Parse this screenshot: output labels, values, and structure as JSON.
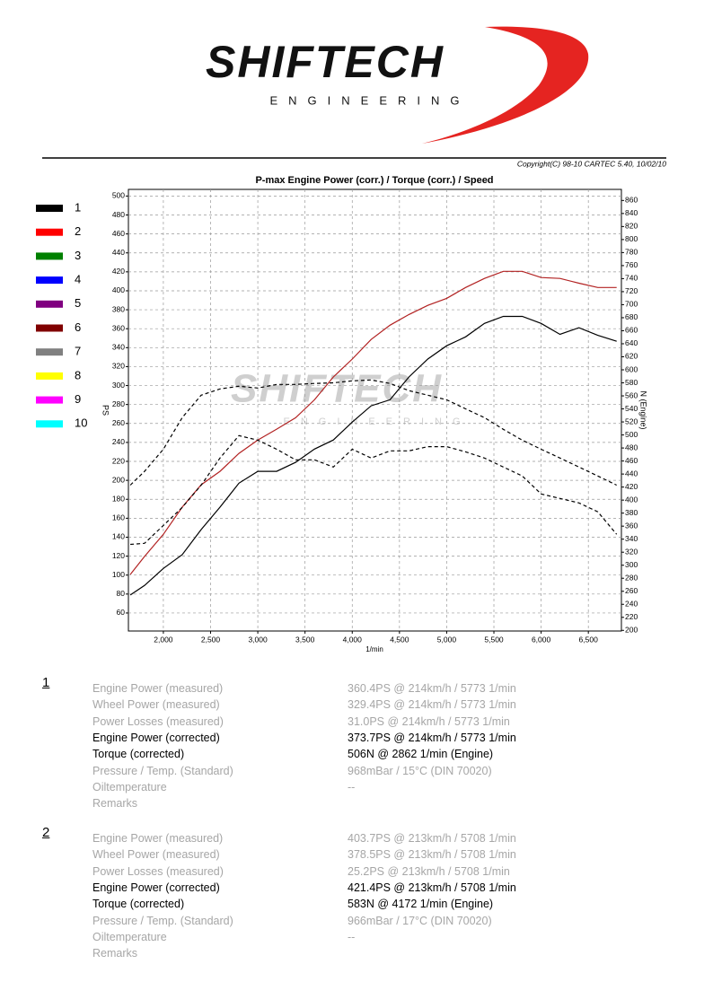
{
  "header": {
    "brand": "SHIFTECH",
    "tagline": "ENGINEERING",
    "copyright": "Copyright(C) 98-10 CARTEC 5.40, 10/02/10"
  },
  "chart_data": {
    "type": "line",
    "title": "P-max Engine Power (corr.) / Torque (corr.) / Speed",
    "ylabel": "PS",
    "y2label": "N (Engine)",
    "xlabel": "1/min",
    "watermark": {
      "brand": "SHIFTECH",
      "tagline": "ENGINEERING"
    },
    "x": [
      1650,
      1800,
      2000,
      2200,
      2400,
      2600,
      2800,
      3000,
      3200,
      3400,
      3600,
      3800,
      4000,
      4200,
      4400,
      4600,
      4800,
      5000,
      5200,
      5400,
      5600,
      5800,
      6000,
      6200,
      6400,
      6600,
      6800
    ],
    "xlim": [
      1630,
      6850
    ],
    "xticks": [
      {
        "value": 2000,
        "label": "2,000"
      },
      {
        "value": 2500,
        "label": "2,500"
      },
      {
        "value": 3000,
        "label": "3,000"
      },
      {
        "value": 3500,
        "label": "3,500"
      },
      {
        "value": 4000,
        "label": "4,000"
      },
      {
        "value": 4500,
        "label": "4,500"
      },
      {
        "value": 5000,
        "label": "5,000"
      },
      {
        "value": 5500,
        "label": "5,500"
      },
      {
        "value": 6000,
        "label": "6,000"
      },
      {
        "value": 6500,
        "label": "6,500"
      }
    ],
    "ylim": [
      41,
      507
    ],
    "yticks": [
      60,
      80,
      100,
      120,
      140,
      160,
      180,
      200,
      220,
      240,
      260,
      280,
      300,
      320,
      340,
      360,
      380,
      400,
      420,
      440,
      460,
      480,
      500
    ],
    "y2lim": [
      199,
      877
    ],
    "y2ticks": [
      200,
      220,
      240,
      260,
      280,
      300,
      320,
      340,
      360,
      380,
      400,
      420,
      440,
      460,
      480,
      500,
      520,
      540,
      560,
      580,
      600,
      620,
      640,
      660,
      680,
      700,
      720,
      740,
      760,
      780,
      800,
      820,
      840,
      860
    ],
    "grid": true,
    "legend": [
      {
        "label": "1",
        "color": "#000000"
      },
      {
        "label": "2",
        "color": "#ff0000"
      },
      {
        "label": "3",
        "color": "#008000"
      },
      {
        "label": "4",
        "color": "#0000ff"
      },
      {
        "label": "5",
        "color": "#800080"
      },
      {
        "label": "6",
        "color": "#800000"
      },
      {
        "label": "7",
        "color": "#808080"
      },
      {
        "label": "8",
        "color": "#ffff00"
      },
      {
        "label": "9",
        "color": "#ff00ff"
      },
      {
        "label": "10",
        "color": "#00ffff"
      }
    ],
    "series": [
      {
        "color": "#b22222",
        "dash": false,
        "axis": "y",
        "values": [
          100.7,
          119.6,
          143,
          171.7,
          195.3,
          209.5,
          228.4,
          242.6,
          254,
          266,
          285,
          309,
          328,
          348.6,
          363.7,
          375,
          384.6,
          392,
          403.5,
          413,
          420.5,
          420.5,
          414,
          413,
          408,
          403.5,
          403.5
        ]
      },
      {
        "color": "#000000",
        "dash": false,
        "axis": "y",
        "values": [
          79,
          89,
          107,
          121.5,
          148,
          171.7,
          197,
          209.5,
          209.5,
          219,
          233,
          242.6,
          261.5,
          278.6,
          285,
          309,
          328,
          342,
          351.4,
          365.6,
          373,
          373,
          365.6,
          354,
          361,
          353,
          346.7
        ]
      },
      {
        "color": "#000000",
        "dash": true,
        "axis": "y2",
        "values": [
          423,
          444,
          478,
          526.5,
          561,
          570.6,
          574.8,
          572,
          577.5,
          577.5,
          579,
          580,
          583,
          584.4,
          579,
          568,
          561,
          554,
          540,
          526.5,
          508.6,
          492,
          478,
          464.5,
          450.8,
          437,
          423
        ]
      },
      {
        "color": "#000000",
        "dash": true,
        "axis": "y2",
        "values": [
          332,
          333.6,
          361,
          388.8,
          423,
          464.5,
          499,
          492,
          478,
          461.8,
          461.8,
          450.8,
          478,
          464.5,
          475.6,
          475.6,
          482,
          482,
          474,
          464.5,
          450.8,
          437,
          409.4,
          402.5,
          395.6,
          382,
          347.4
        ]
      }
    ]
  },
  "results": [
    {
      "run": "1",
      "rows": [
        {
          "label": "Engine Power (measured)",
          "value": "360.4PS @ 214km/h / 5773 1/min",
          "emphasis": false
        },
        {
          "label": "Wheel Power (measured)",
          "value": "329.4PS @ 214km/h / 5773 1/min",
          "emphasis": false
        },
        {
          "label": "Power Losses (measured)",
          "value": "31.0PS @ 214km/h / 5773 1/min",
          "emphasis": false
        },
        {
          "label": "Engine Power (corrected)",
          "value": "373.7PS @ 214km/h / 5773 1/min",
          "emphasis": true
        },
        {
          "label": "Torque (corrected)",
          "value": "506N @ 2862 1/min (Engine)",
          "emphasis": true
        },
        {
          "label": "Pressure / Temp. (Standard)",
          "value": "968mBar / 15°C    (DIN 70020)",
          "emphasis": false
        },
        {
          "label": "Oiltemperature",
          "value": "--",
          "emphasis": false
        },
        {
          "label": "Remarks",
          "value": null,
          "emphasis": false
        }
      ]
    },
    {
      "run": "2",
      "rows": [
        {
          "label": "Engine Power (measured)",
          "value": "403.7PS @ 213km/h / 5708 1/min",
          "emphasis": false
        },
        {
          "label": "Wheel Power (measured)",
          "value": "378.5PS @ 213km/h / 5708 1/min",
          "emphasis": false
        },
        {
          "label": "Power Losses (measured)",
          "value": "25.2PS @ 213km/h / 5708 1/min",
          "emphasis": false
        },
        {
          "label": "Engine Power (corrected)",
          "value": "421.4PS @ 213km/h / 5708 1/min",
          "emphasis": true
        },
        {
          "label": "Torque (corrected)",
          "value": "583N @ 4172 1/min (Engine)",
          "emphasis": true
        },
        {
          "label": "Pressure / Temp. (Standard)",
          "value": "966mBar / 17°C    (DIN 70020)",
          "emphasis": false
        },
        {
          "label": "Oiltemperature",
          "value": "--",
          "emphasis": false
        },
        {
          "label": "Remarks",
          "value": null,
          "emphasis": false
        }
      ]
    }
  ]
}
